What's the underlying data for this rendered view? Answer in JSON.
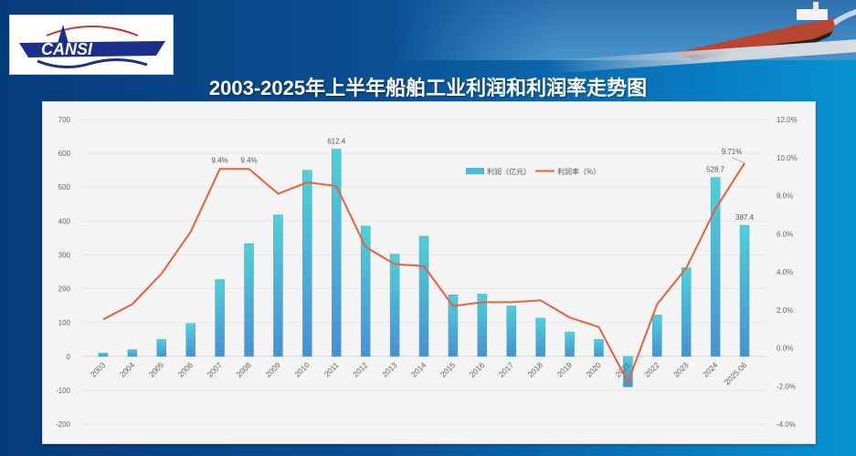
{
  "header": {
    "logo_text": "CANSI",
    "title": "2003-2025年上半年船舶工业利润和利润率走势图"
  },
  "chart_data": {
    "type": "bar+line",
    "title": "2003-2025年上半年船舶工业利润和利润率走势图",
    "xlabel": "",
    "ylabel": "利润（亿元）",
    "ylabel_right": "利润率（%）",
    "categories": [
      "2003",
      "2004",
      "2005",
      "2006",
      "2007",
      "2008",
      "2009",
      "2010",
      "2011",
      "2012",
      "2013",
      "2014",
      "2015",
      "2016",
      "2017",
      "2018",
      "2019",
      "2020",
      "2021",
      "2022",
      "2023",
      "2024",
      "2025.06"
    ],
    "series": [
      {
        "name": "利润（亿元）",
        "type": "bar",
        "axis": "left",
        "color": "#4fc3d6",
        "values": [
          10,
          20,
          50,
          97,
          227,
          333,
          418,
          550,
          612.4,
          385,
          302,
          355,
          182,
          184,
          149,
          113,
          72,
          50,
          -90,
          122,
          262,
          528.7,
          387.4
        ]
      },
      {
        "name": "利润率（%）",
        "type": "line",
        "axis": "right",
        "color": "#e8603c",
        "values": [
          1.5,
          2.3,
          3.9,
          6.1,
          9.4,
          9.4,
          8.1,
          8.7,
          8.5,
          5.3,
          4.4,
          4.3,
          2.2,
          2.4,
          2.4,
          2.5,
          1.6,
          1.1,
          -1.8,
          2.3,
          4.2,
          7.3,
          9.71
        ]
      }
    ],
    "ylim": [
      -200,
      700
    ],
    "ylim_right": [
      -4.0,
      12.0
    ],
    "yticks": [
      "700",
      "600",
      "500",
      "400",
      "300",
      "200",
      "100",
      "0",
      "-100",
      "-200"
    ],
    "yticks_right": [
      "12.0%",
      "10.0%",
      "8.0%",
      "6.0%",
      "4.0%",
      "2.0%",
      "0.0%",
      "-2.0%",
      "-4.0%"
    ],
    "data_labels": {
      "bars": [
        {
          "category": "2011",
          "label": "612.4"
        },
        {
          "category": "2024",
          "label": "528.7"
        },
        {
          "category": "2025.06",
          "label": "387.4"
        }
      ],
      "line": [
        {
          "category": "2007",
          "label": "9.4%"
        },
        {
          "category": "2008",
          "label": "9.4%"
        },
        {
          "category": "2025.06",
          "label": "9.71%"
        }
      ]
    },
    "legend": {
      "position": "top-right-inside",
      "items": [
        {
          "label": "利润（亿元）",
          "kind": "bar",
          "color": "#4fb8d4"
        },
        {
          "label": "利润率（%）",
          "kind": "line",
          "color": "#e8603c"
        }
      ]
    },
    "grid": true
  }
}
